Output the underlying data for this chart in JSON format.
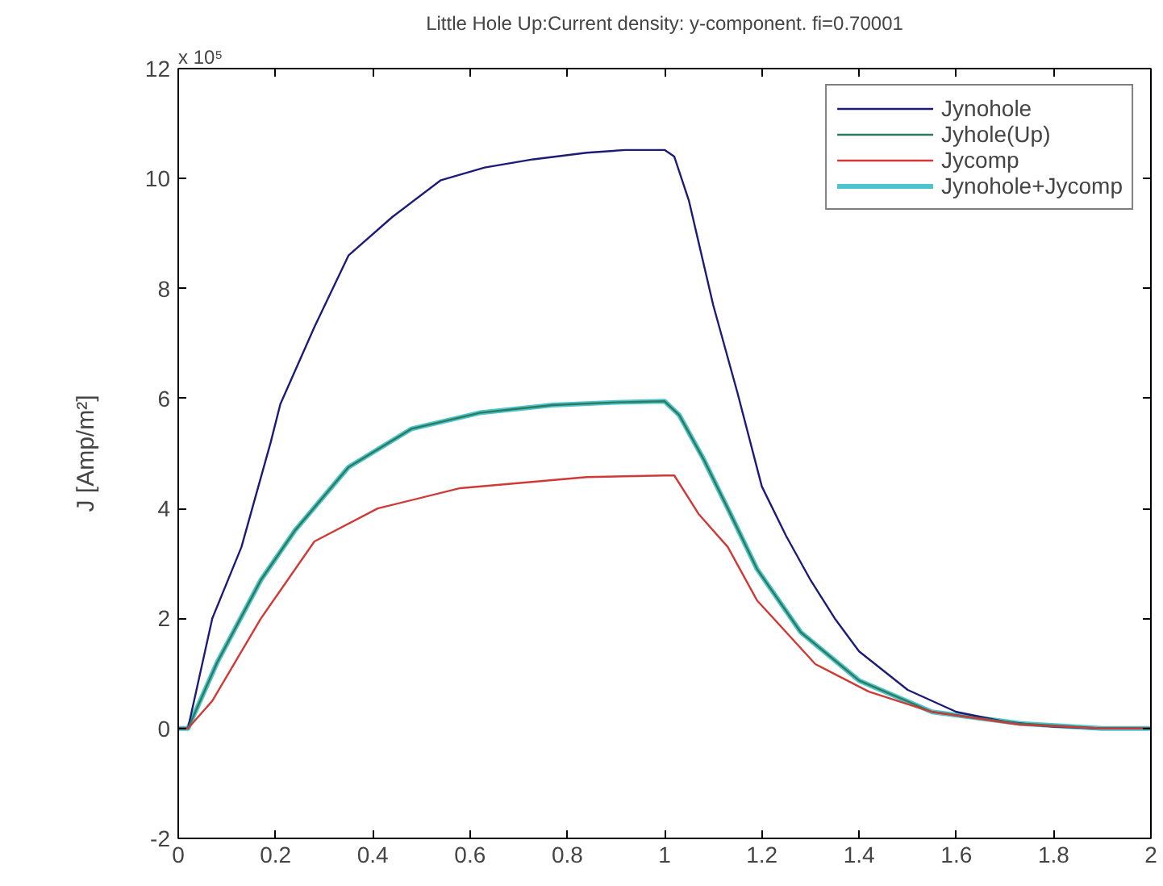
{
  "chart_data": {
    "type": "line",
    "title": "Little Hole Up:Current density: y-component. fi=0.70001",
    "ylabel": "J [Amp/m²]",
    "annotations": [
      "x 10⁵"
    ],
    "xlim": [
      0,
      2
    ],
    "ylim": [
      -2,
      12
    ],
    "xticks": [
      0,
      0.2,
      0.4,
      0.6,
      0.8,
      1,
      1.2,
      1.4,
      1.6,
      1.8,
      2
    ],
    "yticks": [
      -2,
      0,
      2,
      4,
      6,
      8,
      10,
      12
    ],
    "grid": false,
    "legend": "top right",
    "line_style": "solid",
    "marker": "none",
    "series": [
      {
        "name": "Jynohole",
        "color": "#1c1c78",
        "x": [
          0,
          0.02,
          0.07,
          0.13,
          0.19,
          0.21,
          0.28,
          0.35,
          0.44,
          0.54,
          0.63,
          0.73,
          0.84,
          0.92,
          1,
          1.02,
          1.05,
          1.1,
          1.15,
          1.2,
          1.25,
          1.3,
          1.35,
          1.4,
          1.5,
          1.6,
          1.7,
          1.8,
          1.9,
          2
        ],
        "values": [
          0,
          0,
          2.0,
          3.3,
          5.2,
          5.9,
          7.3,
          8.6,
          9.3,
          9.97,
          10.2,
          10.35,
          10.47,
          10.52,
          10.52,
          10.4,
          9.6,
          7.7,
          6.1,
          4.4,
          3.5,
          2.7,
          2.0,
          1.4,
          0.7,
          0.3,
          0.12,
          0.03,
          0,
          0
        ]
      },
      {
        "name": "Jyhole(Up)",
        "color": "#2e7a5c",
        "x": [
          0,
          0.02,
          0.08,
          0.17,
          0.24,
          0.35,
          0.48,
          0.62,
          0.77,
          0.9,
          1,
          1.03,
          1.08,
          1.13,
          1.19,
          1.28,
          1.4,
          1.55,
          1.73,
          1.9,
          2
        ],
        "values": [
          0,
          0,
          1.2,
          2.7,
          3.6,
          4.75,
          5.45,
          5.74,
          5.88,
          5.93,
          5.95,
          5.7,
          4.9,
          4.0,
          2.9,
          1.75,
          0.87,
          0.3,
          0.09,
          0,
          0
        ]
      },
      {
        "name": "Jycomp",
        "color": "#d03a36",
        "x": [
          0,
          0.02,
          0.07,
          0.17,
          0.28,
          0.41,
          0.58,
          0.84,
          1,
          1.02,
          1.07,
          1.13,
          1.19,
          1.31,
          1.42,
          1.55,
          1.73,
          1.9,
          2
        ],
        "values": [
          0,
          0,
          0.5,
          2.0,
          3.4,
          4.0,
          4.37,
          4.57,
          4.6,
          4.6,
          3.9,
          3.3,
          2.33,
          1.17,
          0.67,
          0.3,
          0.07,
          0,
          0
        ]
      },
      {
        "name": "Jynohole+Jycomp",
        "color": "#4cc4cc",
        "x": [
          0,
          0.02,
          0.08,
          0.17,
          0.24,
          0.35,
          0.48,
          0.62,
          0.77,
          0.9,
          1,
          1.03,
          1.08,
          1.13,
          1.19,
          1.28,
          1.4,
          1.55,
          1.73,
          1.9,
          2
        ],
        "values": [
          0,
          0,
          1.2,
          2.7,
          3.6,
          4.75,
          5.45,
          5.74,
          5.88,
          5.93,
          5.95,
          5.7,
          4.9,
          4.0,
          2.9,
          1.75,
          0.87,
          0.3,
          0.09,
          0,
          0
        ]
      }
    ]
  }
}
